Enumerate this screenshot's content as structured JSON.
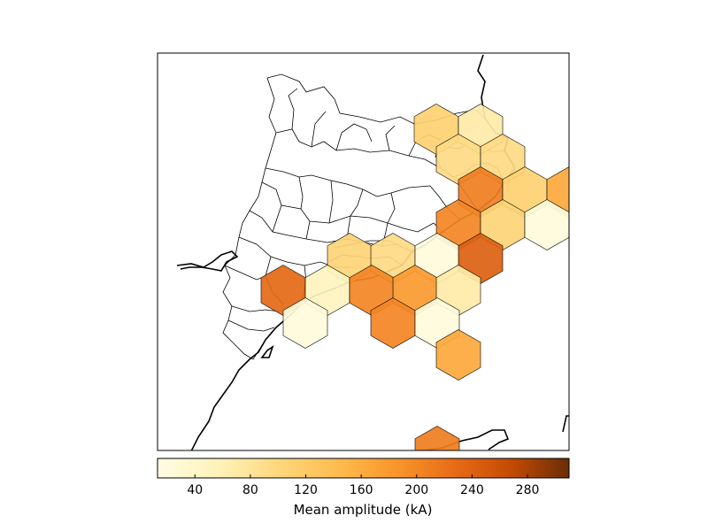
{
  "map": {
    "type": "hexbin",
    "colormap": "YlOrBr",
    "region_borders": "admin-comarques",
    "coastline": true
  },
  "hexbins": [
    {
      "cell": "r0c0",
      "value": 110
    },
    {
      "cell": "r0c1",
      "value": 70
    },
    {
      "cell": "r1c0",
      "value": 95
    },
    {
      "cell": "r1c1",
      "value": 95
    },
    {
      "cell": "r2c0",
      "value": 210
    },
    {
      "cell": "r2c1",
      "value": 110
    },
    {
      "cell": "r2c2",
      "value": 165
    },
    {
      "cell": "r3c0",
      "value": 200
    },
    {
      "cell": "r3c1",
      "value": 105
    },
    {
      "cell": "r3c2",
      "value": 20
    },
    {
      "cell": "r4c0",
      "value": 105
    },
    {
      "cell": "r4c1",
      "value": 95
    },
    {
      "cell": "r4c2",
      "value": 20
    },
    {
      "cell": "r4c3",
      "value": 240
    },
    {
      "cell": "r5c0",
      "value": 230
    },
    {
      "cell": "r5c1",
      "value": 50
    },
    {
      "cell": "r5c2",
      "value": 200
    },
    {
      "cell": "r5c3",
      "value": 180
    },
    {
      "cell": "r5c4",
      "value": 70
    },
    {
      "cell": "r6c0",
      "value": 20
    },
    {
      "cell": "r6c1",
      "value": 200
    },
    {
      "cell": "r6c2",
      "value": 20
    },
    {
      "cell": "r7c0",
      "value": 165
    },
    {
      "cell": "r8c0",
      "value": 210
    }
  ],
  "colorbar": {
    "label": "Mean amplitude (kA)",
    "vmin": 13,
    "vmax": 310,
    "ticks": [
      "40",
      "80",
      "120",
      "160",
      "200",
      "240",
      "280"
    ]
  }
}
